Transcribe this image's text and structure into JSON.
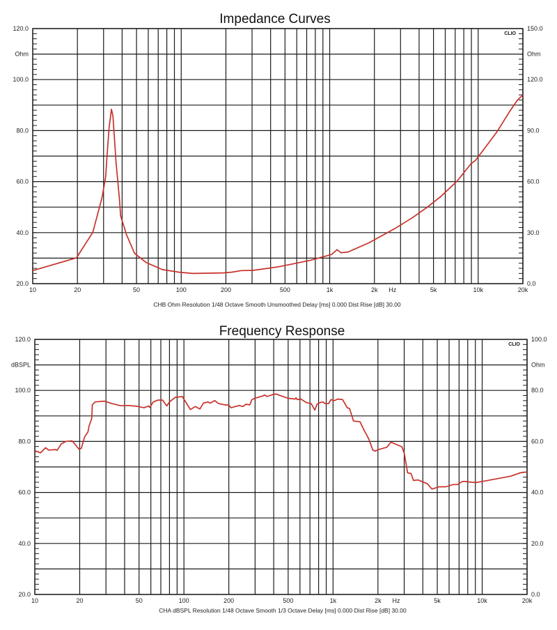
{
  "chart_data": [
    {
      "type": "line",
      "title": "Impedance Curves",
      "caption": "CHB Ohm Resolution 1/48 Octave Smooth Unsmoothed Delay [ms] 0.000 Dist Rise [dB] 30.00",
      "logo": "CLIO",
      "xscale": "log",
      "xlim": [
        10,
        20000
      ],
      "ylim": [
        20,
        120
      ],
      "ylim_right": [
        0,
        150
      ],
      "grid": true,
      "xlabel": "Hz",
      "x_ticks": [
        {
          "value": 10,
          "label": "10"
        },
        {
          "value": 20,
          "label": "20"
        },
        {
          "value": 50,
          "label": "50"
        },
        {
          "value": 100,
          "label": "100"
        },
        {
          "value": 200,
          "label": "200"
        },
        {
          "value": 500,
          "label": "500"
        },
        {
          "value": 1000,
          "label": "1k"
        },
        {
          "value": 2000,
          "label": "2k"
        },
        {
          "value": 5000,
          "label": "5k"
        },
        {
          "value": 10000,
          "label": "10k"
        },
        {
          "value": 20000,
          "label": "20k"
        }
      ],
      "y_ticks_left": [
        {
          "value": 120,
          "label": "120.0"
        },
        {
          "value": 110,
          "label": "Ohm"
        },
        {
          "value": 100,
          "label": "100.0"
        },
        {
          "value": 80,
          "label": "80.0"
        },
        {
          "value": 60,
          "label": "60.0"
        },
        {
          "value": 40,
          "label": "40.0"
        },
        {
          "value": 20,
          "label": "20.0"
        }
      ],
      "y_ticks_right": [
        {
          "value": 150,
          "label": "150.0"
        },
        {
          "value": 135,
          "label": "Ohm"
        },
        {
          "value": 120,
          "label": "120.0"
        },
        {
          "value": 90,
          "label": "90.0"
        },
        {
          "value": 60,
          "label": "60.0"
        },
        {
          "value": 30,
          "label": "30.0"
        },
        {
          "value": 0,
          "label": "0.0"
        }
      ],
      "series": [
        {
          "name": "Impedance",
          "color": "#c8302a",
          "x": [
            10,
            19.7,
            25.4,
            29.3,
            31,
            31.5,
            32.7,
            33.9,
            34.7,
            36.4,
            38.4,
            39.1,
            42.8,
            48.5,
            58,
            74.7,
            96,
            119,
            190,
            220,
            254,
            304,
            452,
            561,
            748,
            929,
            1035,
            1120,
            1195,
            1330,
            1838,
            2730,
            3640,
            4520,
            5610,
            7210,
            8950,
            9620,
            13300,
            16500,
            18400,
            20000
          ],
          "y": [
            25.1,
            30.1,
            40.1,
            53.8,
            62,
            68.4,
            81.2,
            88.4,
            85.7,
            67.5,
            52.9,
            46.5,
            39.2,
            31.9,
            28.3,
            25.5,
            24.5,
            24.0,
            24.2,
            24.5,
            25.1,
            25.2,
            26.6,
            27.7,
            29.2,
            30.7,
            31.5,
            33.3,
            32.1,
            32.4,
            36.0,
            41.5,
            46.0,
            49.9,
            54.2,
            60.2,
            67.0,
            68.4,
            79.3,
            88.0,
            92.0,
            94.0
          ]
        }
      ]
    },
    {
      "type": "line",
      "title": "Frequency Response",
      "caption": "CHA dBSPL Resolution 1/48 Octave Smooth 1/3 Octave Delay [ms] 0.000 Dist Rise [dB] 30.00",
      "logo": "CLIO",
      "xscale": "log",
      "xlim": [
        10,
        20000
      ],
      "ylim": [
        20,
        120
      ],
      "ylim_right": [
        0,
        100
      ],
      "grid": true,
      "xlabel": "Hz",
      "x_ticks": [
        {
          "value": 10,
          "label": "10"
        },
        {
          "value": 20,
          "label": "20"
        },
        {
          "value": 50,
          "label": "50"
        },
        {
          "value": 100,
          "label": "100"
        },
        {
          "value": 200,
          "label": "200"
        },
        {
          "value": 500,
          "label": "500"
        },
        {
          "value": 1000,
          "label": "1k"
        },
        {
          "value": 2000,
          "label": "2k"
        },
        {
          "value": 5000,
          "label": "5k"
        },
        {
          "value": 10000,
          "label": "10k"
        },
        {
          "value": 20000,
          "label": "20k"
        }
      ],
      "y_ticks_left": [
        {
          "value": 120,
          "label": "120.0"
        },
        {
          "value": 110,
          "label": "dBSPL"
        },
        {
          "value": 100,
          "label": "100.0"
        },
        {
          "value": 80,
          "label": "80.0"
        },
        {
          "value": 60,
          "label": "60.0"
        },
        {
          "value": 40,
          "label": "40.0"
        },
        {
          "value": 20,
          "label": "20.0"
        }
      ],
      "y_ticks_right": [
        {
          "value": 100,
          "label": "100.0"
        },
        {
          "value": 90,
          "label": "Ohm"
        },
        {
          "value": 80,
          "label": "80.0"
        },
        {
          "value": 60,
          "label": "60.0"
        },
        {
          "value": 40,
          "label": "40.0"
        },
        {
          "value": 20,
          "label": "20.0"
        },
        {
          "value": 0,
          "label": "0.0"
        }
      ],
      "series": [
        {
          "name": "SPL",
          "color": "#c8302a",
          "x": [
            10,
            10.9,
            11.8,
            12.4,
            13.8,
            14.1,
            15.1,
            16.2,
            17.8,
            19.8,
            20.5,
            21.6,
            22.7,
            23.1,
            24.1,
            24.3,
            25.4,
            29.3,
            32.7,
            37.7,
            42,
            48.4,
            54,
            58,
            59,
            62.3,
            67,
            72,
            76.7,
            80,
            87.6,
            97.5,
            110.6,
            119,
            128,
            135,
            145,
            150,
            161,
            170,
            189,
            200,
            207,
            235,
            248,
            261,
            276,
            286,
            302,
            336,
            348,
            361,
            395,
            417,
            432,
            499,
            555,
            565,
            575,
            608,
            664,
            714,
            754,
            781,
            824,
            854,
            885,
            934,
            968,
            1021,
            1078,
            1159,
            1245,
            1291,
            1371,
            1517,
            1630,
            1676,
            1750,
            1847,
            1914,
            2019,
            2291,
            2444,
            2893,
            3000,
            3162,
            3337,
            3461,
            3717,
            4290,
            4611,
            5130,
            5715,
            6368,
            6839,
            7350,
            7756,
            8480,
            9120,
            10900,
            15600,
            18000,
            20000
          ],
          "y": [
            76.4,
            75.5,
            77.5,
            76.6,
            76.8,
            76.5,
            79.1,
            80.0,
            80.2,
            77.0,
            77.3,
            81.8,
            83.7,
            86.0,
            89.1,
            94.4,
            95.5,
            95.8,
            94.9,
            94.0,
            94.1,
            93.8,
            93.2,
            93.9,
            93.3,
            95.5,
            96.2,
            96.2,
            93.9,
            95.5,
            97.3,
            97.6,
            92.5,
            93.7,
            92.7,
            95.0,
            95.5,
            95.0,
            96.0,
            94.9,
            94.3,
            94.3,
            93.2,
            94.1,
            93.7,
            94.6,
            94.3,
            96.4,
            97.0,
            97.8,
            98.2,
            97.6,
            98.4,
            98.6,
            98.2,
            96.9,
            96.6,
            97.1,
            96.4,
            96.6,
            95.2,
            94.8,
            92.3,
            94.6,
            95.3,
            95.5,
            94.8,
            94.8,
            96.4,
            96.0,
            96.6,
            96.4,
            93.2,
            92.9,
            88.0,
            87.7,
            83.9,
            82.7,
            80.5,
            76.6,
            76.2,
            76.8,
            77.7,
            79.7,
            77.9,
            75.5,
            67.7,
            67.4,
            64.7,
            64.9,
            63.4,
            61.3,
            62.2,
            62.2,
            63.1,
            63.1,
            64.3,
            64.3,
            64.0,
            63.9,
            64.7,
            66.4,
            67.7,
            68.0
          ]
        }
      ]
    }
  ]
}
